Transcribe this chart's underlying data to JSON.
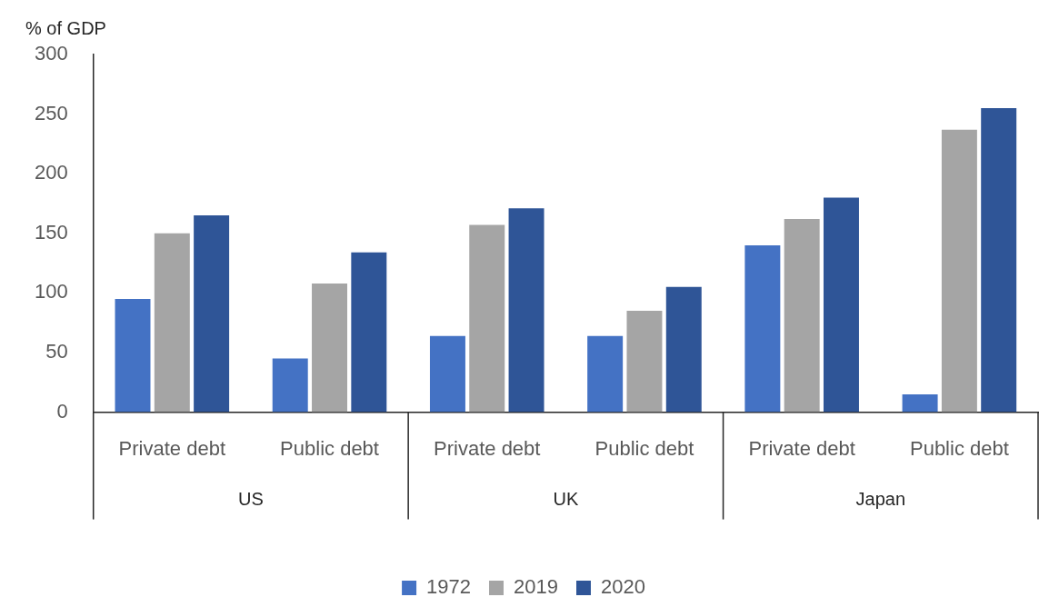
{
  "chart_data": {
    "type": "bar",
    "ylabel": "% of GDP",
    "categories": [
      "Private debt",
      "Public debt",
      "Private debt",
      "Public debt",
      "Private debt",
      "Public debt"
    ],
    "series": [
      {
        "name": "1972",
        "color": "#4472c4",
        "values": [
          95,
          45,
          64,
          64,
          140,
          15
        ]
      },
      {
        "name": "2019",
        "color": "#a5a5a5",
        "values": [
          150,
          108,
          157,
          85,
          162,
          237
        ]
      },
      {
        "name": "2020",
        "color": "#2f5597",
        "values": [
          165,
          134,
          171,
          105,
          180,
          255
        ]
      }
    ],
    "annotations": [
      "US",
      "UK",
      "Japan"
    ],
    "ylim": [
      0,
      300
    ],
    "yticks": [
      0,
      50,
      100,
      150,
      200,
      250,
      300
    ],
    "grid": false,
    "legend": "bottom"
  }
}
